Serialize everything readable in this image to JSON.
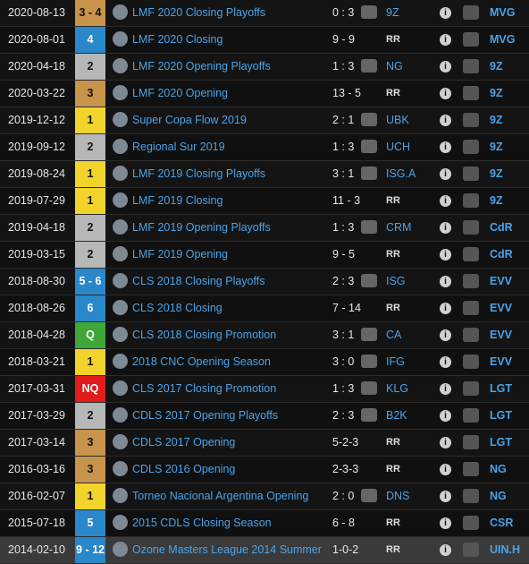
{
  "rows": [
    {
      "date": "2020-08-13",
      "place": "3 - 4",
      "place_type": "third",
      "tournament": "LMF 2020 Closing Playoffs",
      "score": "0 : 3",
      "opponent": "9Z",
      "opponent_rr": false,
      "team": "MVG",
      "opp_icon": "9z-logo-icon",
      "team_icon": "mvg-logo-icon",
      "tournament_icon": "lmf-logo-icon"
    },
    {
      "date": "2020-08-01",
      "place": "4",
      "place_type": "top",
      "tournament": "LMF 2020 Closing",
      "score": "9 - 9",
      "opponent": "RR",
      "opponent_rr": true,
      "team": "MVG",
      "opp_icon": "",
      "team_icon": "mvg-logo-icon",
      "tournament_icon": "lmf-logo-icon"
    },
    {
      "date": "2020-04-18",
      "place": "2",
      "place_type": "second",
      "tournament": "LMF 2020 Opening Playoffs",
      "score": "1 : 3",
      "opponent": "NG",
      "opponent_rr": false,
      "team": "9Z",
      "opp_icon": "ng-logo-icon",
      "team_icon": "9z-logo-icon",
      "tournament_icon": "lmf-logo-icon"
    },
    {
      "date": "2020-03-22",
      "place": "3",
      "place_type": "third",
      "tournament": "LMF 2020 Opening",
      "score": "13 - 5",
      "opponent": "RR",
      "opponent_rr": true,
      "team": "9Z",
      "opp_icon": "",
      "team_icon": "9z-logo-icon",
      "tournament_icon": "lmf-logo-icon"
    },
    {
      "date": "2019-12-12",
      "place": "1",
      "place_type": "first",
      "tournament": "Super Copa Flow 2019",
      "score": "2 : 1",
      "opponent": "UBK",
      "opponent_rr": false,
      "team": "9Z",
      "opp_icon": "ubk-logo-icon",
      "team_icon": "9z-logo-icon",
      "tournament_icon": "flow-logo-icon"
    },
    {
      "date": "2019-09-12",
      "place": "2",
      "place_type": "second",
      "tournament": "Regional Sur 2019",
      "score": "1 : 3",
      "opponent": "UCH",
      "opponent_rr": false,
      "team": "9Z",
      "opp_icon": "uch-logo-icon",
      "team_icon": "9z-logo-icon",
      "tournament_icon": "regional-logo-icon"
    },
    {
      "date": "2019-08-24",
      "place": "1",
      "place_type": "first",
      "tournament": "LMF 2019 Closing Playoffs",
      "score": "3 : 1",
      "opponent": "ISG.A",
      "opponent_rr": false,
      "team": "9Z",
      "opp_icon": "isg-logo-icon",
      "team_icon": "9z-logo-icon",
      "tournament_icon": "lmf-logo-icon"
    },
    {
      "date": "2019-07-29",
      "place": "1",
      "place_type": "first",
      "tournament": "LMF 2019 Closing",
      "score": "11 - 3",
      "opponent": "RR",
      "opponent_rr": true,
      "team": "9Z",
      "opp_icon": "",
      "team_icon": "9z-logo-icon",
      "tournament_icon": "lmf-logo-icon"
    },
    {
      "date": "2019-04-18",
      "place": "2",
      "place_type": "second",
      "tournament": "LMF 2019 Opening Playoffs",
      "score": "1 : 3",
      "opponent": "CRM",
      "opponent_rr": false,
      "team": "CdR",
      "opp_icon": "crm-logo-icon",
      "team_icon": "cdr-logo-icon",
      "tournament_icon": "lmf-logo-icon"
    },
    {
      "date": "2019-03-15",
      "place": "2",
      "place_type": "second",
      "tournament": "LMF 2019 Opening",
      "score": "9 - 5",
      "opponent": "RR",
      "opponent_rr": true,
      "team": "CdR",
      "opp_icon": "",
      "team_icon": "cdr-logo-icon",
      "tournament_icon": "lmf-logo-icon"
    },
    {
      "date": "2018-08-30",
      "place": "5 - 6",
      "place_type": "top",
      "tournament": "CLS 2018 Closing Playoffs",
      "score": "2 : 3",
      "opponent": "ISG",
      "opponent_rr": false,
      "team": "EVV",
      "opp_icon": "isg-logo-icon",
      "team_icon": "evv-logo-icon",
      "tournament_icon": "cls-logo-icon"
    },
    {
      "date": "2018-08-26",
      "place": "6",
      "place_type": "top",
      "tournament": "CLS 2018 Closing",
      "score": "7 - 14",
      "opponent": "RR",
      "opponent_rr": true,
      "team": "EVV",
      "opp_icon": "",
      "team_icon": "evv-logo-icon",
      "tournament_icon": "cls-logo-icon"
    },
    {
      "date": "2018-04-28",
      "place": "Q",
      "place_type": "q",
      "tournament": "CLS 2018 Closing Promotion",
      "score": "3 : 1",
      "opponent": "CA",
      "opponent_rr": false,
      "team": "EVV",
      "opp_icon": "ca-logo-icon",
      "team_icon": "evv-logo-icon",
      "tournament_icon": "cls-logo-icon"
    },
    {
      "date": "2018-03-21",
      "place": "1",
      "place_type": "first",
      "tournament": "2018 CNC Opening Season",
      "score": "3 : 0",
      "opponent": "IFG",
      "opponent_rr": false,
      "team": "EVV",
      "opp_icon": "ifg-logo-icon",
      "team_icon": "evv-logo-icon",
      "tournament_icon": "cnc-logo-icon"
    },
    {
      "date": "2017-03-31",
      "place": "NQ",
      "place_type": "nq",
      "tournament": "CLS 2017 Closing Promotion",
      "score": "1 : 3",
      "opponent": "KLG",
      "opponent_rr": false,
      "team": "LGT",
      "opp_icon": "klg-logo-icon",
      "team_icon": "lgt-logo-icon",
      "tournament_icon": "cls-logo-icon"
    },
    {
      "date": "2017-03-29",
      "place": "2",
      "place_type": "second",
      "tournament": "CDLS 2017 Opening Playoffs",
      "score": "2 : 3",
      "opponent": "B2K",
      "opponent_rr": false,
      "team": "LGT",
      "opp_icon": "b2k-logo-icon",
      "team_icon": "lgt-logo-icon",
      "tournament_icon": "cdls-logo-icon"
    },
    {
      "date": "2017-03-14",
      "place": "3",
      "place_type": "third",
      "tournament": "CDLS 2017 Opening",
      "score": "5-2-3",
      "opponent": "RR",
      "opponent_rr": true,
      "team": "LGT",
      "opp_icon": "",
      "team_icon": "lgt-logo-icon",
      "tournament_icon": "cdls-logo-icon"
    },
    {
      "date": "2016-03-16",
      "place": "3",
      "place_type": "third",
      "tournament": "CDLS 2016 Opening",
      "score": "2-3-3",
      "opponent": "RR",
      "opponent_rr": true,
      "team": "NG",
      "opp_icon": "",
      "team_icon": "ng-logo-icon",
      "tournament_icon": "cdls-logo-icon"
    },
    {
      "date": "2016-02-07",
      "place": "1",
      "place_type": "first",
      "tournament": "Torneo Nacional Argentina Opening",
      "score": "2 : 0",
      "opponent": "DNS",
      "opponent_rr": false,
      "team": "NG",
      "opp_icon": "dns-logo-icon",
      "team_icon": "ng-logo-icon",
      "tournament_icon": "tna-logo-icon"
    },
    {
      "date": "2015-07-18",
      "place": "5",
      "place_type": "top",
      "tournament": "2015 CDLS Closing Season",
      "score": "6 - 8",
      "opponent": "RR",
      "opponent_rr": true,
      "team": "CSR",
      "opp_icon": "",
      "team_icon": "csr-logo-icon",
      "tournament_icon": "cdls-logo-icon"
    },
    {
      "date": "2014-02-10",
      "place": "9 - 12",
      "place_type": "top",
      "tournament": "Ozone Masters League 2014 Summer",
      "score": "1-0-2",
      "opponent": "RR",
      "opponent_rr": true,
      "team": "UIN.H",
      "opp_icon": "",
      "team_icon": "uin-logo-icon",
      "tournament_icon": "oml-logo-icon"
    }
  ],
  "info_icon_label": "i",
  "colors": {
    "link": "#4aa3e8",
    "first": "#f2d32b",
    "second": "#b7b7b7",
    "third": "#c8934a",
    "top": "#2a87c9",
    "q": "#3fa63a",
    "nq": "#e01c1c"
  }
}
